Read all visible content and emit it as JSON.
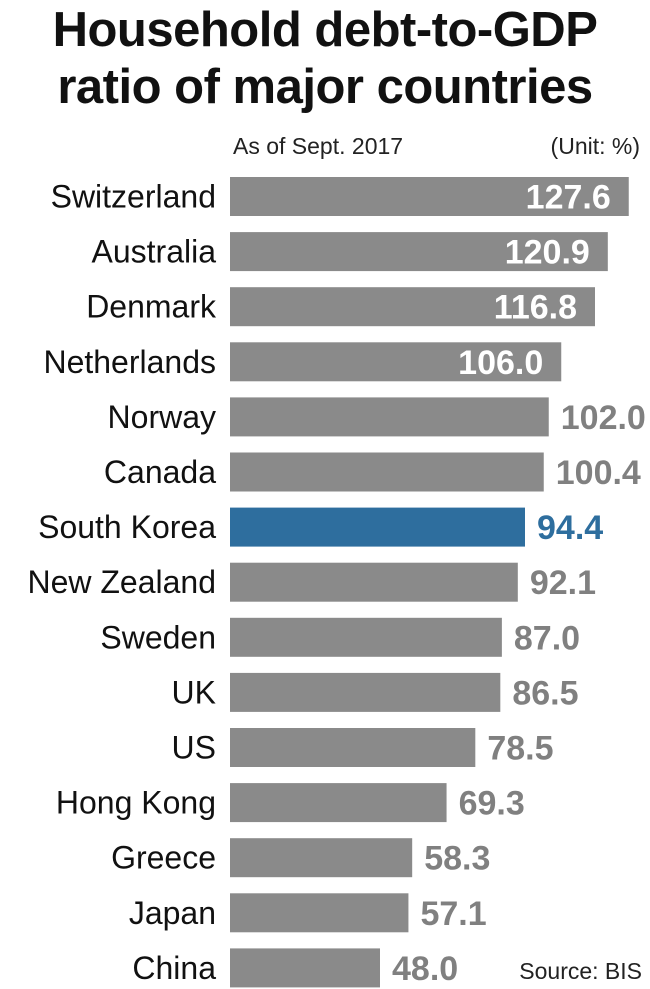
{
  "title_line1": "Household debt-to-GDP",
  "title_line2": "ratio of major countries",
  "subtitle": "As of Sept. 2017",
  "unit": "(Unit: %)",
  "source": "Source: BIS",
  "colors": {
    "bar": "#8a8a8a",
    "highlight": "#2e6e9e",
    "value_outside": "#808080",
    "value_inside": "#ffffff",
    "label": "#111111"
  },
  "chart_data": {
    "type": "bar",
    "orientation": "horizontal",
    "categories": [
      "Switzerland",
      "Australia",
      "Denmark",
      "Netherlands",
      "Norway",
      "Canada",
      "South Korea",
      "New Zealand",
      "Sweden",
      "UK",
      "US",
      "Hong Kong",
      "Greece",
      "Japan",
      "China"
    ],
    "values": [
      127.6,
      120.9,
      116.8,
      106.0,
      102.0,
      100.4,
      94.4,
      92.1,
      87.0,
      86.5,
      78.5,
      69.3,
      58.3,
      57.1,
      48.0
    ],
    "value_labels": [
      "127.6",
      "120.9",
      "116.8",
      "106.0",
      "102.0",
      "100.4",
      "94.4",
      "92.1",
      "87.0",
      "86.5",
      "78.5",
      "69.3",
      "58.3",
      "57.1",
      "48.0"
    ],
    "highlight": "South Korea",
    "xlim": [
      0,
      130
    ],
    "grid": false,
    "legend": "none"
  }
}
